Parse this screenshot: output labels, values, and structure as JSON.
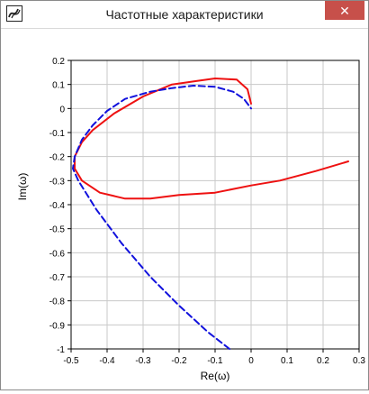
{
  "window": {
    "title": "Частотные характеристики",
    "close_label": "✕",
    "app_icon": "flow-diagram-icon"
  },
  "chart_data": {
    "type": "line",
    "title": "",
    "xlabel": "Re(ω)",
    "ylabel": "Im(ω)",
    "xlim": [
      -0.5,
      0.3
    ],
    "ylim": [
      -1.0,
      0.2
    ],
    "x_ticks": [
      "-0.5",
      "-0.4",
      "-0.3",
      "-0.2",
      "-0.1",
      "0",
      "0.1",
      "0.2",
      "0.3"
    ],
    "y_ticks": [
      "0.2",
      "0.1",
      "0",
      "-0.1",
      "-0.2",
      "-0.3",
      "-0.4",
      "-0.5",
      "-0.6",
      "-0.7",
      "-0.8",
      "-0.9",
      "-1"
    ],
    "grid": true,
    "series": [
      {
        "color": "#ee1111",
        "style": "solid",
        "x": [
          0.27,
          0.18,
          0.08,
          0.0,
          -0.1,
          -0.2,
          -0.28,
          -0.35,
          -0.42,
          -0.47,
          -0.49,
          -0.49,
          -0.47,
          -0.44,
          -0.38,
          -0.3,
          -0.22,
          -0.15,
          -0.1,
          -0.04,
          -0.01,
          0.0
        ],
        "y": [
          -0.22,
          -0.26,
          -0.3,
          -0.32,
          -0.35,
          -0.36,
          -0.375,
          -0.375,
          -0.35,
          -0.3,
          -0.25,
          -0.2,
          -0.14,
          -0.09,
          -0.02,
          0.05,
          0.1,
          0.115,
          0.125,
          0.12,
          0.08,
          0.02
        ]
      },
      {
        "color": "#1111dd",
        "style": "dashed",
        "x": [
          -0.06,
          -0.12,
          -0.2,
          -0.28,
          -0.36,
          -0.43,
          -0.48,
          -0.495,
          -0.49,
          -0.47,
          -0.44,
          -0.4,
          -0.35,
          -0.28,
          -0.22,
          -0.16,
          -0.1,
          -0.05,
          -0.02,
          0.0
        ],
        "y": [
          -1.0,
          -0.93,
          -0.82,
          -0.7,
          -0.56,
          -0.42,
          -0.3,
          -0.25,
          -0.2,
          -0.13,
          -0.07,
          -0.01,
          0.04,
          0.07,
          0.085,
          0.095,
          0.09,
          0.07,
          0.04,
          0.0
        ]
      }
    ]
  }
}
